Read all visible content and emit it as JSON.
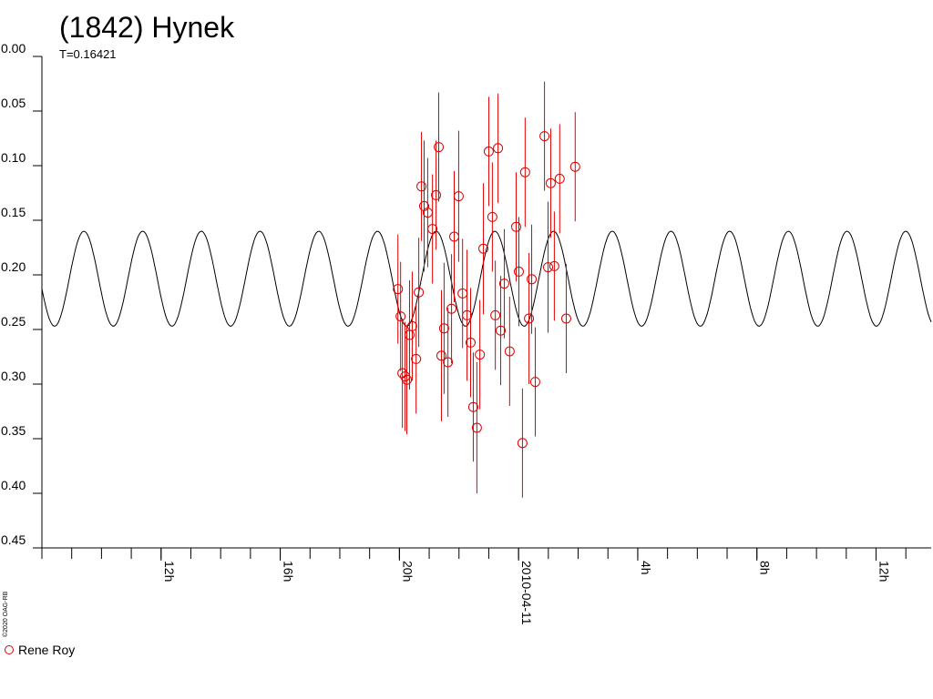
{
  "chart_data": {
    "type": "scatter",
    "title": "(1842) Hynek",
    "period": {
      "value": 0.16421,
      "label": "T=0.16421"
    },
    "credit": "©2020 OAG-RB",
    "xlim": [
      -16,
      13.85
    ],
    "xticks": [
      {
        "value": -12,
        "label": "12h"
      },
      {
        "value": -8,
        "label": "16h"
      },
      {
        "value": -4,
        "label": "20h"
      },
      {
        "value": 0,
        "label": "2010-04-11"
      },
      {
        "value": 4,
        "label": "4h"
      },
      {
        "value": 8,
        "label": "8h"
      },
      {
        "value": 12,
        "label": "12h"
      }
    ],
    "xminorticks": [
      -16,
      -15,
      -14,
      -13,
      -12,
      -11,
      -10,
      -9,
      -8,
      -7,
      -6,
      -5,
      -4,
      -3,
      -2,
      -1,
      0,
      1,
      2,
      3,
      4,
      5,
      6,
      7,
      8,
      9,
      10,
      11,
      12,
      13
    ],
    "ylim": [
      0,
      0.45
    ],
    "y_inverted": true,
    "yticks": [
      {
        "value": 0,
        "label": "0.00"
      },
      {
        "value": 0.05,
        "label": "0.05"
      },
      {
        "value": 0.1,
        "label": "0.10"
      },
      {
        "value": 0.15,
        "label": "0.15"
      },
      {
        "value": 0.2,
        "label": "0.20"
      },
      {
        "value": 0.25,
        "label": "0.25"
      },
      {
        "value": 0.3,
        "label": "0.30"
      },
      {
        "value": 0.35,
        "label": "0.35"
      },
      {
        "value": 0.4,
        "label": "0.40"
      },
      {
        "value": 0.45,
        "label": "0.45"
      }
    ],
    "model": {
      "mean": 0.2035,
      "amplitude": 0.0435,
      "epoch": -14.59,
      "color": "#000000"
    },
    "series": [
      {
        "name": "Rene Roy",
        "color": "#e00000",
        "x": [
          -4.05,
          -3.96,
          -3.9,
          -3.81,
          -3.75,
          -3.66,
          -3.57,
          -3.44,
          -3.35,
          -3.26,
          -3.17,
          -3.05,
          -2.89,
          -2.77,
          -2.68,
          -2.59,
          -2.5,
          -2.37,
          -2.25,
          -2.16,
          -2.01,
          -1.88,
          -1.73,
          -1.61,
          -1.52,
          -1.4,
          -1.3,
          -1.18,
          -1.0,
          -0.88,
          -0.78,
          -0.69,
          -0.6,
          -0.48,
          -0.3,
          -0.08,
          0.01,
          0.13,
          0.22,
          0.35,
          0.44,
          0.56,
          0.87,
          0.99,
          1.08,
          1.2,
          1.38,
          1.6,
          1.9
        ],
        "values": [
          0.213,
          0.238,
          0.29,
          0.293,
          0.296,
          0.255,
          0.247,
          0.277,
          0.216,
          0.119,
          0.137,
          0.143,
          0.158,
          0.127,
          0.083,
          0.274,
          0.249,
          0.28,
          0.231,
          0.165,
          0.128,
          0.217,
          0.237,
          0.262,
          0.321,
          0.34,
          0.273,
          0.176,
          0.087,
          0.147,
          0.237,
          0.084,
          0.251,
          0.208,
          0.27,
          0.156,
          0.197,
          0.354,
          0.106,
          0.24,
          0.204,
          0.298,
          0.073,
          0.193,
          0.116,
          0.192,
          0.112,
          0.24,
          0.101
        ],
        "errors": [
          0.05,
          0.05,
          0.05,
          0.05,
          0.05,
          0.05,
          0.05,
          0.05,
          0.05,
          0.05,
          0.06,
          0.05,
          0.05,
          0.05,
          0.05,
          0.06,
          0.06,
          0.05,
          0.05,
          0.06,
          0.06,
          0.05,
          0.06,
          0.05,
          0.05,
          0.06,
          0.05,
          0.06,
          0.05,
          0.05,
          0.05,
          0.05,
          0.05,
          0.05,
          0.05,
          0.05,
          0.05,
          0.05,
          0.05,
          0.06,
          0.05,
          0.05,
          0.05,
          0.06,
          0.05,
          0.05,
          0.05,
          0.05,
          0.05
        ]
      }
    ]
  }
}
